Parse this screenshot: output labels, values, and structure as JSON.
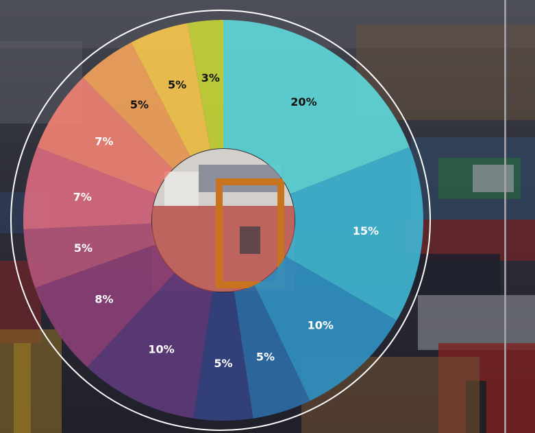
{
  "chart_data": {
    "type": "donut",
    "title": "",
    "legend": "none",
    "slices": [
      {
        "label": "20%",
        "value": 20,
        "color": "#5fd4d6",
        "label_color": "#111111"
      },
      {
        "label": "15%",
        "value": 15,
        "color": "#3fb3cf",
        "label_color": "#ffffff"
      },
      {
        "label": "10%",
        "value": 10,
        "color": "#2f8fc0",
        "label_color": "#ffffff"
      },
      {
        "label": "5%",
        "value": 5,
        "color": "#2d6aa3",
        "label_color": "#ffffff"
      },
      {
        "label": "5%",
        "value": 5,
        "color": "#34427f",
        "label_color": "#ffffff"
      },
      {
        "label": "10%",
        "value": 10,
        "color": "#5c3a78",
        "label_color": "#ffffff"
      },
      {
        "label": "8%",
        "value": 8,
        "color": "#8a3f75",
        "label_color": "#ffffff"
      },
      {
        "label": "5%",
        "value": 5,
        "color": "#b05479",
        "label_color": "#ffffff"
      },
      {
        "label": "7%",
        "value": 7,
        "color": "#d6697e",
        "label_color": "#ffffff"
      },
      {
        "label": "7%",
        "value": 7,
        "color": "#ec8072",
        "label_color": "#ffffff"
      },
      {
        "label": "5%",
        "value": 5,
        "color": "#f0a05a",
        "label_color": "#111111"
      },
      {
        "label": "5%",
        "value": 5,
        "color": "#f3c44e",
        "label_color": "#111111"
      },
      {
        "label": "3%",
        "value": 3,
        "color": "#c4d237",
        "label_color": "#111111"
      }
    ]
  },
  "background": {
    "description_color_dark": "#2a2d3a",
    "accent_red": "#c0302a"
  }
}
